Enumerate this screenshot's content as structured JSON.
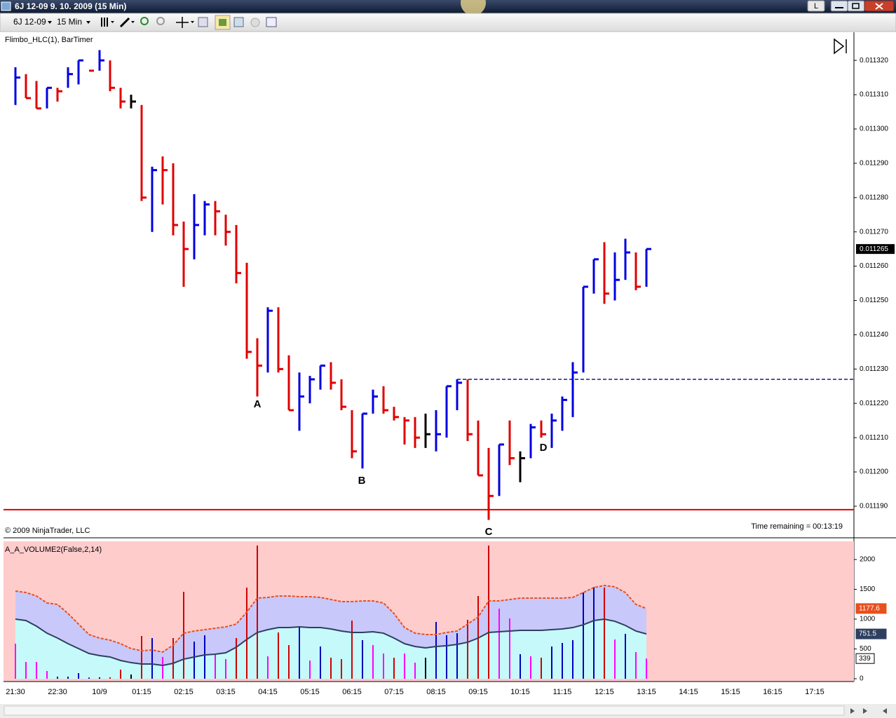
{
  "window": {
    "title": "6J 12-09  9. 10. 2009 (15 Min)",
    "button": "L"
  },
  "toolbar": {
    "instrument": "6J 12-09",
    "interval": "15 Min"
  },
  "time_axis": {
    "categories": [
      "21:30",
      null,
      null,
      null,
      "22:30",
      null,
      null,
      null,
      "10/9",
      null,
      null,
      null,
      "01:15",
      null,
      null,
      null,
      "02:15",
      null,
      null,
      null,
      "03:15",
      null,
      null,
      null,
      "04:15",
      null,
      null,
      null,
      "05:15",
      null,
      null,
      null,
      "06:15",
      null,
      null,
      null,
      "07:15",
      null,
      null,
      null,
      "08:15",
      null,
      null,
      null,
      "09:15",
      null,
      null,
      null,
      "10:15",
      null,
      null,
      null,
      "11:15",
      null,
      null,
      null,
      "12:15",
      null,
      null,
      null,
      "13:15",
      null,
      null,
      null,
      "14:15",
      null,
      null,
      null,
      "15:15",
      null,
      null,
      null,
      "16:15",
      null,
      null,
      null,
      "17:15"
    ]
  },
  "chart_data": [
    {
      "type": "hlc",
      "title": "Flimbo_HLC(1), BarTimer",
      "footer": "© 2009 NinjaTrader, LLC",
      "timer": "Time remaining = 00:13:19",
      "high": [
        0.011318,
        0.011316,
        0.011314,
        0.011312,
        0.011312,
        0.011318,
        0.01132,
        0.011317,
        0.011323,
        0.01132,
        0.011312,
        0.01131,
        0.011307,
        0.011289,
        0.011292,
        0.01129,
        0.011273,
        0.011281,
        0.011279,
        0.011279,
        0.011275,
        0.011272,
        0.011261,
        0.011239,
        0.011248,
        0.011248,
        0.011234,
        0.011229,
        0.011228,
        0.011231,
        0.011232,
        0.011227,
        0.011218,
        0.011217,
        0.011224,
        0.011225,
        0.011219,
        0.011216,
        0.011216,
        0.011217,
        0.011218,
        0.011225,
        0.011227,
        0.011227,
        0.011215,
        0.011207,
        0.011208,
        0.011215,
        0.011206,
        0.011214,
        0.011215,
        0.011217,
        0.011222,
        0.011232,
        0.011254,
        0.011262,
        0.011267,
        0.011264,
        0.011268,
        0.011264,
        0.011265
      ],
      "low": [
        0.011307,
        0.011309,
        0.011306,
        0.011306,
        0.011308,
        0.011312,
        0.011313,
        0.011317,
        0.011317,
        0.011311,
        0.011306,
        0.011306,
        0.011279,
        0.01127,
        0.011278,
        0.011269,
        0.011254,
        0.011262,
        0.011269,
        0.011269,
        0.011266,
        0.011255,
        0.011233,
        0.011222,
        0.011229,
        0.011229,
        0.011218,
        0.011212,
        0.01122,
        0.011224,
        0.011224,
        0.011218,
        0.011204,
        0.011201,
        0.011217,
        0.011217,
        0.011215,
        0.011208,
        0.011207,
        0.011207,
        0.011206,
        0.01121,
        0.011218,
        0.011209,
        0.011199,
        0.011186,
        0.011193,
        0.011202,
        0.011197,
        0.011204,
        0.01121,
        0.011207,
        0.011212,
        0.011216,
        0.011229,
        0.011252,
        0.011249,
        0.01125,
        0.011256,
        0.011253,
        0.011254
      ],
      "close": [
        0.011315,
        0.011309,
        0.011306,
        0.011312,
        0.011311,
        0.011316,
        0.01132,
        0.011317,
        0.01132,
        0.011312,
        0.011308,
        0.011308,
        0.01128,
        0.011288,
        0.011288,
        0.011272,
        0.011265,
        0.011272,
        0.011278,
        0.011276,
        0.01127,
        0.011258,
        0.011235,
        0.011231,
        0.011247,
        0.01123,
        0.011218,
        0.011222,
        0.011227,
        0.011231,
        0.011226,
        0.011219,
        0.011206,
        0.011217,
        0.011222,
        0.011218,
        0.011216,
        0.011215,
        0.01121,
        0.011211,
        0.011211,
        0.011225,
        0.011226,
        0.011211,
        0.011199,
        0.011193,
        0.011208,
        0.011204,
        0.011204,
        0.011213,
        0.011211,
        0.011215,
        0.011221,
        0.011229,
        0.011254,
        0.011262,
        0.011252,
        0.011256,
        0.011264,
        0.011254,
        0.011265
      ],
      "colors": [
        "#0000e0",
        "#e00000",
        "#e00000",
        "#0000e0",
        "#e00000",
        "#0000e0",
        "#0000e0",
        "#e00000",
        "#0000e0",
        "#e00000",
        "#e00000",
        "#000000",
        "#e00000",
        "#0000e0",
        "#e00000",
        "#e00000",
        "#e00000",
        "#0000e0",
        "#0000e0",
        "#e00000",
        "#e00000",
        "#e00000",
        "#e00000",
        "#e00000",
        "#0000e0",
        "#e00000",
        "#e00000",
        "#0000e0",
        "#0000e0",
        "#0000e0",
        "#e00000",
        "#e00000",
        "#e00000",
        "#0000e0",
        "#0000e0",
        "#e00000",
        "#e00000",
        "#e00000",
        "#e00000",
        "#000000",
        "#0000e0",
        "#0000e0",
        "#0000e0",
        "#e00000",
        "#e00000",
        "#e00000",
        "#0000e0",
        "#e00000",
        "#000000",
        "#0000e0",
        "#e00000",
        "#0000e0",
        "#0000e0",
        "#0000e0",
        "#0000e0",
        "#0000e0",
        "#e00000",
        "#0000e0",
        "#0000e0",
        "#e00000",
        "#0000e0"
      ],
      "annotations": [
        "A",
        "B",
        "C",
        "D"
      ],
      "hlines": [
        {
          "value": 0.011189,
          "color": "#e00000",
          "dashed": false
        },
        {
          "value": 0.011227,
          "color": "#1c1c7c",
          "dashed": true
        }
      ],
      "ylim": [
        0.011181,
        0.011328
      ],
      "yticks": [
        {
          "value": 0.01119,
          "label": "0.011190"
        },
        {
          "value": 0.0112,
          "label": "0.011200"
        },
        {
          "value": 0.01121,
          "label": "0.011210"
        },
        {
          "value": 0.01122,
          "label": "0.011220"
        },
        {
          "value": 0.01123,
          "label": "0.011230"
        },
        {
          "value": 0.01124,
          "label": "0.011240"
        },
        {
          "value": 0.01125,
          "label": "0.011250"
        },
        {
          "value": 0.01126,
          "label": "0.011260"
        },
        {
          "value": 0.01127,
          "label": "0.011270"
        },
        {
          "value": 0.01128,
          "label": "0.011280"
        },
        {
          "value": 0.01129,
          "label": "0.011290"
        },
        {
          "value": 0.0113,
          "label": "0.011300"
        },
        {
          "value": 0.01131,
          "label": "0.011310"
        },
        {
          "value": 0.01132,
          "label": "0.011320"
        }
      ]
    },
    {
      "type": "volume",
      "title": "A_A_VOLUME2(False,2,14)",
      "values": [
        588,
        282,
        282,
        129,
        35,
        35,
        94,
        20,
        24,
        24,
        153,
        71,
        717,
        682,
        365,
        682,
        1458,
        623,
        729,
        400,
        329,
        682,
        1529,
        2234,
        376,
        776,
        564,
        882,
        306,
        541,
        353,
        329,
        976,
        647,
        564,
        423,
        353,
        423,
        270,
        353,
        953,
        729,
        764,
        988,
        1388,
        2234,
        1176,
        1011,
        412,
        376,
        353,
        541,
        600,
        647,
        1446,
        1541,
        1529,
        659,
        753,
        447,
        339
      ],
      "colors": [
        "#ff00ff",
        "#ff00ff",
        "#ff00ff",
        "#ff00ff",
        "#0000c0",
        "#0000c0",
        "#0000c0",
        "#0000c0",
        "#0000c0",
        "#d00000",
        "#d00000",
        "#000000",
        "#d00000",
        "#0000c0",
        "#ff00ff",
        "#d00000",
        "#d00000",
        "#0000c0",
        "#0000c0",
        "#ff00ff",
        "#ff00ff",
        "#d00000",
        "#d00000",
        "#d00000",
        "#ff00ff",
        "#d00000",
        "#d00000",
        "#0000c0",
        "#ff00ff",
        "#0000c0",
        "#d00000",
        "#d00000",
        "#d00000",
        "#0000c0",
        "#ff00ff",
        "#ff00ff",
        "#d00000",
        "#ff00ff",
        "#ff00ff",
        "#000000",
        "#0000c0",
        "#0000c0",
        "#0000c0",
        "#d00000",
        "#d00000",
        "#d00000",
        "#ff00ff",
        "#ff00ff",
        "#0000c0",
        "#ff00ff",
        "#d00000",
        "#0000c0",
        "#0000c0",
        "#0000c0",
        "#0000c0",
        "#0000c0",
        "#d00000",
        "#ff00ff",
        "#0000c0",
        "#ff00ff",
        "#ff00ff"
      ],
      "bands": {
        "upper": {
          "color": "#e8501e",
          "values": [
            1470,
            1446,
            1388,
            1270,
            1247,
            1094,
            917,
            741,
            682,
            647,
            588,
            506,
            470,
            482,
            447,
            564,
            764,
            800,
            823,
            847,
            870,
            917,
            1117,
            1352,
            1364,
            1388,
            1388,
            1376,
            1376,
            1364,
            1329,
            1294,
            1294,
            1305,
            1305,
            1270,
            1094,
            858,
            764,
            741,
            741,
            776,
            800,
            917,
            1035,
            1305,
            1305,
            1329,
            1352,
            1352,
            1352,
            1352,
            1352,
            1364,
            1446,
            1529,
            1564,
            1541,
            1446,
            1247,
            1177.6
          ]
        },
        "lower": {
          "color": "#2f3f5f",
          "values": [
            1000,
            976,
            882,
            764,
            682,
            588,
            506,
            423,
            388,
            365,
            306,
            270,
            247,
            247,
            223,
            259,
            329,
            365,
            400,
            412,
            435,
            529,
            659,
            776,
            823,
            858,
            858,
            870,
            858,
            858,
            835,
            800,
            776,
            776,
            788,
            764,
            682,
            588,
            541,
            517,
            541,
            553,
            576,
            612,
            682,
            776,
            788,
            800,
            811,
            811,
            811,
            823,
            835,
            858,
            905,
            976,
            1000,
            964,
            894,
            800,
            751.5
          ]
        }
      },
      "ylim": [
        -47,
        2305
      ],
      "yticks": [
        0,
        500,
        1000,
        1500,
        2000
      ]
    }
  ]
}
